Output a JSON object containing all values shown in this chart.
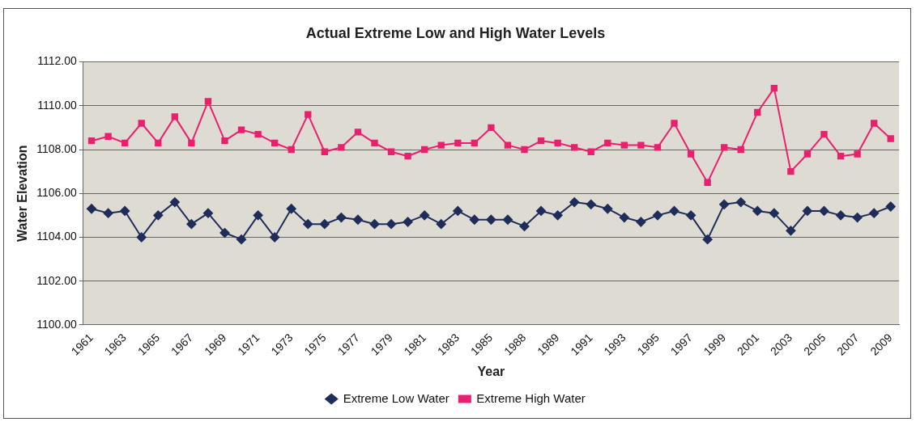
{
  "chart_data": {
    "type": "line",
    "title": "Actual Extreme Low and High Water Levels",
    "xlabel": "Year",
    "ylabel": "Water Elevation",
    "categories": [
      "1961",
      null,
      "1963",
      null,
      "1965",
      null,
      "1967",
      null,
      "1969",
      null,
      "1971",
      null,
      "1973",
      null,
      "1975",
      null,
      "1977",
      null,
      "1979",
      null,
      "1981",
      null,
      "1983",
      null,
      "1985",
      null,
      "1988",
      null,
      "1989",
      null,
      "1991",
      null,
      "1993",
      null,
      "1995",
      null,
      "1997",
      null,
      "1999",
      null,
      "2001",
      null,
      "2003",
      null,
      "2005",
      null,
      "2007",
      null,
      "2009"
    ],
    "series": [
      {
        "name": "Extreme Low Water",
        "color": "#1f2d5a",
        "marker": "diamond",
        "values": [
          1105.3,
          1105.1,
          1105.2,
          1104.0,
          1105.0,
          1105.6,
          1104.6,
          1105.1,
          1104.2,
          1103.9,
          1105.0,
          1104.0,
          1105.3,
          1104.6,
          1104.6,
          1104.9,
          1104.8,
          1104.6,
          1104.6,
          1104.7,
          1105.0,
          1104.6,
          1105.2,
          1104.8,
          1104.8,
          1104.8,
          1104.5,
          1105.2,
          1105.0,
          1105.6,
          1105.5,
          1105.3,
          1104.9,
          1104.7,
          1105.0,
          1105.2,
          1105.0,
          1103.9,
          1105.5,
          1105.6,
          1105.2,
          1105.1,
          1104.3,
          1105.2,
          1105.2,
          1105.0,
          1104.9,
          1105.1,
          1105.4
        ]
      },
      {
        "name": "Extreme High Water",
        "color": "#e8206e",
        "marker": "square",
        "values": [
          1108.4,
          1108.6,
          1108.3,
          1109.2,
          1108.3,
          1109.5,
          1108.3,
          1110.2,
          1108.4,
          1108.9,
          1108.7,
          1108.3,
          1108.0,
          1109.6,
          1107.9,
          1108.1,
          1108.8,
          1108.3,
          1107.9,
          1107.7,
          1108.0,
          1108.2,
          1108.3,
          1108.3,
          1109.0,
          1108.2,
          1108.0,
          1108.4,
          1108.3,
          1108.1,
          1107.9,
          1108.3,
          1108.2,
          1108.2,
          1108.1,
          1109.2,
          1107.8,
          1106.5,
          1108.1,
          1108.0,
          1109.7,
          1110.8,
          1107.0,
          1107.8,
          1108.7,
          1107.7,
          1107.8,
          1109.2,
          1108.5
        ]
      }
    ],
    "ylim": [
      1100,
      1112
    ],
    "yticks": [
      {
        "value": 1100,
        "label": "1100.00"
      },
      {
        "value": 1102,
        "label": "1102.00"
      },
      {
        "value": 1104,
        "label": "1104.00"
      },
      {
        "value": 1106,
        "label": "1106.00"
      },
      {
        "value": 1108,
        "label": "1108.00"
      },
      {
        "value": 1110,
        "label": "1110.00"
      },
      {
        "value": 1112,
        "label": "1112.00"
      }
    ],
    "grid": "y",
    "legend": "bottom",
    "line_style": "solid"
  }
}
